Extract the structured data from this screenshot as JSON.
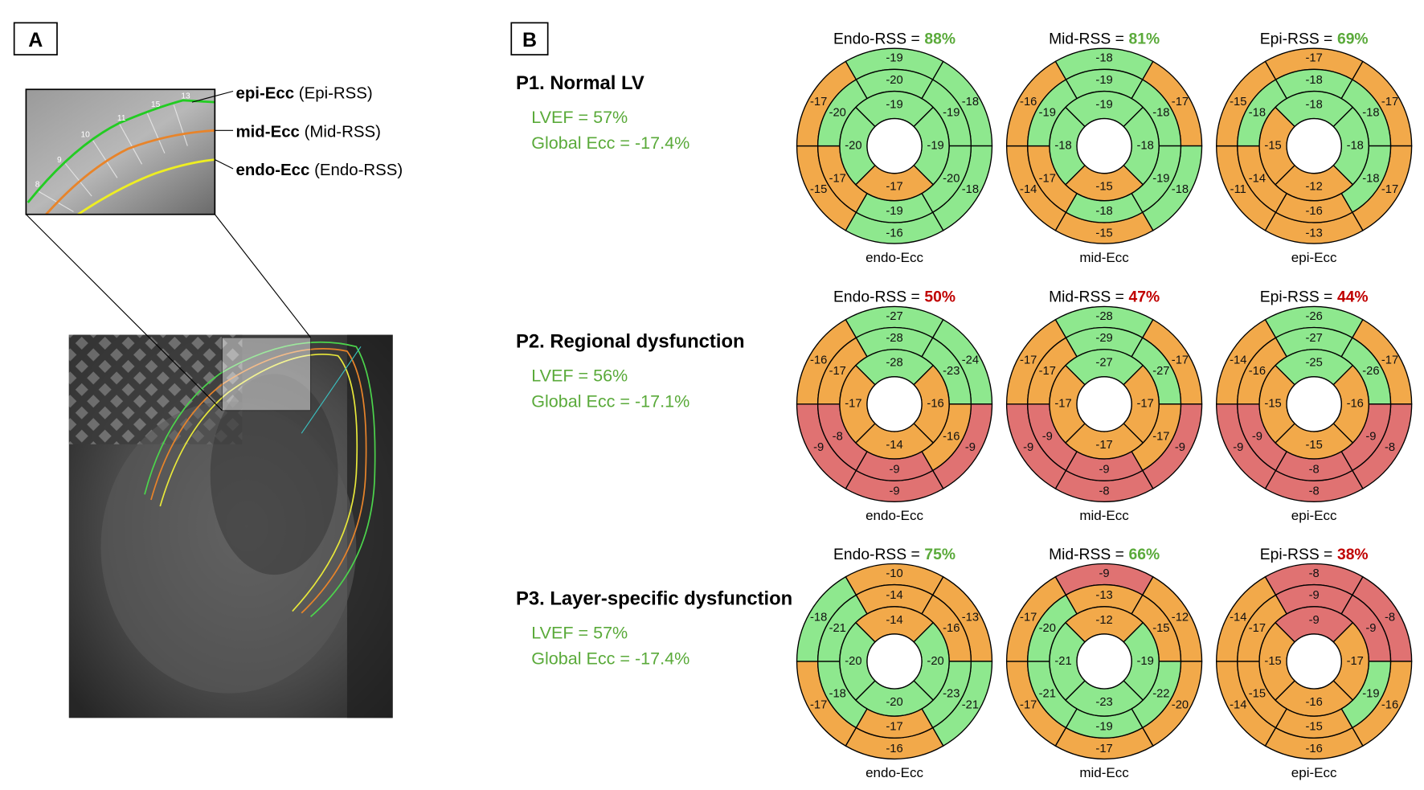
{
  "panel_a": {
    "label": "A",
    "layers": [
      {
        "bold": "epi-Ecc",
        "rest": "(Epi-RSS)"
      },
      {
        "bold": "mid-Ecc",
        "rest": "(Mid-RSS)"
      },
      {
        "bold": "endo-Ecc",
        "rest": "(Endo-RSS)"
      }
    ],
    "zoom_ticks": [
      "8",
      "9",
      "10",
      "11",
      "15",
      "13"
    ]
  },
  "panel_b": {
    "label": "B",
    "palette": {
      "g": "#8ee88e",
      "o": "#f2a94a",
      "r": "#e07272",
      "text_g": "#5aaa3a",
      "text_r": "#c00000"
    },
    "rows": [
      {
        "title": "P1. Normal LV",
        "lvef": "LVEF = 57%",
        "global": "Global Ecc = -17.4%",
        "plots": [
          {
            "rss_label": "Endo-RSS =",
            "rss_value": "88%",
            "rss_color": "text_g",
            "footer": "endo-Ecc",
            "values": [
              -19,
              -18,
              -18,
              -16,
              -15,
              -17,
              -20,
              -19,
              -20,
              -19,
              -17,
              -20,
              -19,
              -19,
              -17,
              -20
            ],
            "colors": [
              "g",
              "g",
              "g",
              "g",
              "o",
              "o",
              "g",
              "g",
              "g",
              "g",
              "o",
              "g",
              "g",
              "g",
              "o",
              "g"
            ]
          },
          {
            "rss_label": "Mid-RSS =",
            "rss_value": "81%",
            "rss_color": "text_g",
            "footer": "mid-Ecc",
            "values": [
              -18,
              -17,
              -18,
              -15,
              -14,
              -16,
              -19,
              -18,
              -19,
              -18,
              -17,
              -19,
              -19,
              -18,
              -15,
              -18
            ],
            "colors": [
              "g",
              "o",
              "g",
              "o",
              "o",
              "o",
              "g",
              "g",
              "g",
              "g",
              "o",
              "g",
              "g",
              "g",
              "o",
              "g"
            ]
          },
          {
            "rss_label": "Epi-RSS =",
            "rss_value": "69%",
            "rss_color": "text_g",
            "footer": "epi-Ecc",
            "values": [
              -17,
              -17,
              -17,
              -13,
              -11,
              -15,
              -18,
              -18,
              -18,
              -16,
              -14,
              -18,
              -18,
              -18,
              -12,
              -15
            ],
            "colors": [
              "o",
              "o",
              "o",
              "o",
              "o",
              "o",
              "g",
              "g",
              "g",
              "o",
              "o",
              "g",
              "g",
              "g",
              "o",
              "o"
            ]
          }
        ]
      },
      {
        "title": "P2. Regional dysfunction",
        "lvef": "LVEF = 56%",
        "global": "Global Ecc = -17.1%",
        "plots": [
          {
            "rss_label": "Endo-RSS =",
            "rss_value": "50%",
            "rss_color": "text_r",
            "footer": "endo-Ecc",
            "values": [
              -27,
              -24,
              -9,
              -9,
              -9,
              -16,
              -28,
              -23,
              -16,
              -9,
              -8,
              -17,
              -28,
              -16,
              -14,
              -17
            ],
            "colors": [
              "g",
              "g",
              "r",
              "r",
              "r",
              "o",
              "g",
              "g",
              "o",
              "r",
              "r",
              "o",
              "g",
              "o",
              "o",
              "o"
            ]
          },
          {
            "rss_label": "Mid-RSS =",
            "rss_value": "47%",
            "rss_color": "text_r",
            "footer": "mid-Ecc",
            "values": [
              -28,
              -17,
              -9,
              -8,
              -9,
              -17,
              -29,
              -27,
              -17,
              -9,
              -9,
              -17,
              -27,
              -17,
              -17,
              -17
            ],
            "colors": [
              "g",
              "o",
              "r",
              "r",
              "r",
              "o",
              "g",
              "g",
              "o",
              "r",
              "r",
              "o",
              "g",
              "o",
              "o",
              "o"
            ]
          },
          {
            "rss_label": "Epi-RSS =",
            "rss_value": "44%",
            "rss_color": "text_r",
            "footer": "epi-Ecc",
            "values": [
              -26,
              -17,
              -8,
              -8,
              -9,
              -14,
              -27,
              -26,
              -9,
              -8,
              -9,
              -16,
              -25,
              -16,
              -15,
              -15
            ],
            "colors": [
              "g",
              "o",
              "r",
              "r",
              "r",
              "o",
              "g",
              "g",
              "r",
              "r",
              "r",
              "o",
              "g",
              "o",
              "o",
              "o"
            ]
          }
        ]
      },
      {
        "title": "P3. Layer-specific dysfunction",
        "lvef": "LVEF = 57%",
        "global": "Global Ecc = -17.4%",
        "plots": [
          {
            "rss_label": "Endo-RSS =",
            "rss_value": "75%",
            "rss_color": "text_g",
            "footer": "endo-Ecc",
            "values": [
              -10,
              -13,
              -21,
              -16,
              -17,
              -18,
              -14,
              -16,
              -23,
              -17,
              -18,
              -21,
              -14,
              -20,
              -20,
              -20
            ],
            "colors": [
              "o",
              "o",
              "g",
              "o",
              "o",
              "g",
              "o",
              "o",
              "g",
              "o",
              "g",
              "g",
              "o",
              "g",
              "g",
              "g"
            ]
          },
          {
            "rss_label": "Mid-RSS =",
            "rss_value": "66%",
            "rss_color": "text_g",
            "footer": "mid-Ecc",
            "values": [
              -9,
              -12,
              -20,
              -17,
              -17,
              -17,
              -13,
              -15,
              -22,
              -19,
              -21,
              -20,
              -12,
              -19,
              -23,
              -21
            ],
            "colors": [
              "r",
              "o",
              "o",
              "o",
              "o",
              "o",
              "o",
              "o",
              "g",
              "g",
              "g",
              "g",
              "o",
              "g",
              "g",
              "g"
            ]
          },
          {
            "rss_label": "Epi-RSS =",
            "rss_value": "38%",
            "rss_color": "text_r",
            "footer": "epi-Ecc",
            "values": [
              -8,
              -8,
              -16,
              -16,
              -14,
              -14,
              -9,
              -9,
              -19,
              -15,
              -15,
              -17,
              -9,
              -17,
              -16,
              -15
            ],
            "colors": [
              "r",
              "r",
              "o",
              "o",
              "o",
              "o",
              "r",
              "r",
              "g",
              "o",
              "o",
              "o",
              "r",
              "o",
              "o",
              "o"
            ]
          }
        ]
      }
    ]
  }
}
